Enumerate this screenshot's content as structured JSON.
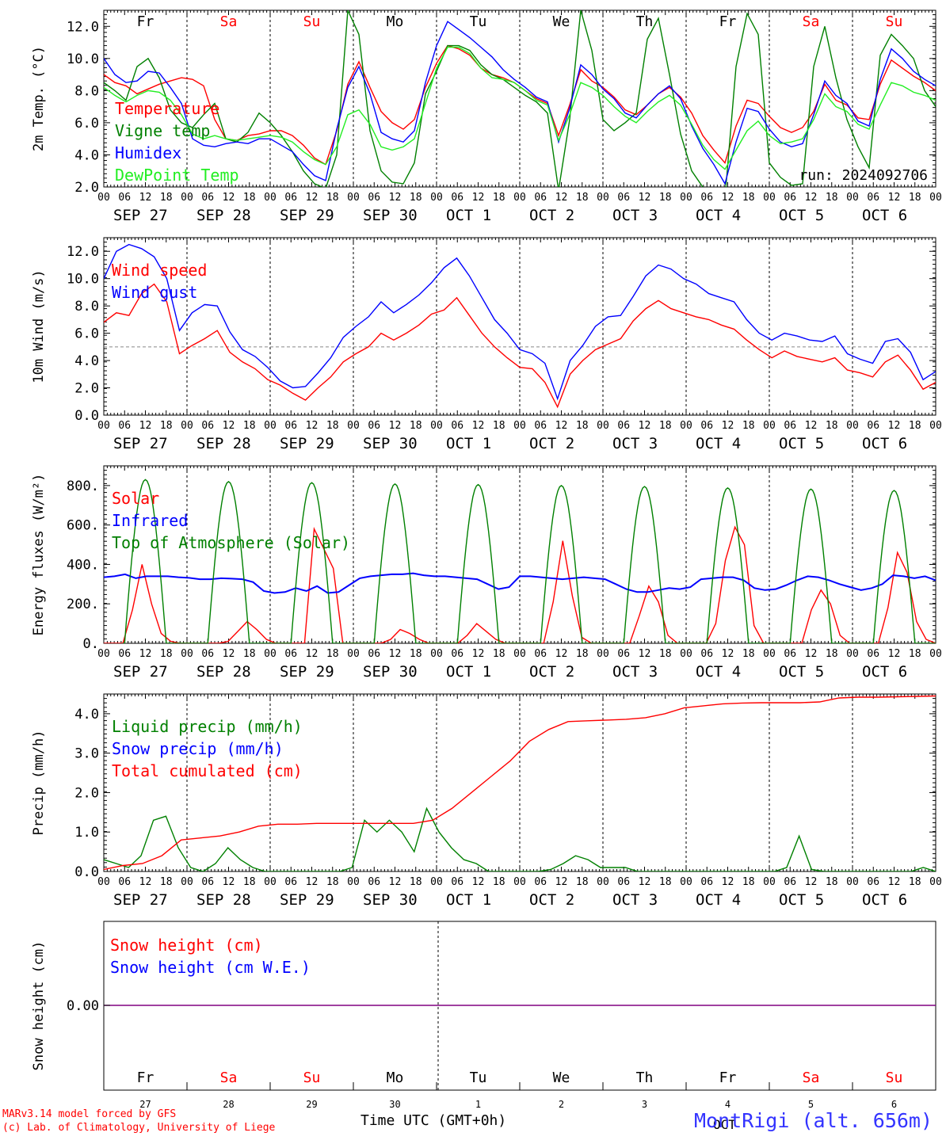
{
  "footer": {
    "model_credit": "MARv3.14 model forced by GFS",
    "lab_credit": "(c) Lab. of Climatology, University of Liege",
    "time_label": "Time UTC (GMT+0h)",
    "station": "MontRigi (alt. 656m)",
    "month_label": "OCT"
  },
  "colors": {
    "red": "#ff0000",
    "green": "#008000",
    "blue": "#0000ff",
    "light_green": "#22ee22",
    "dark_red": "#cc0000"
  },
  "days": {
    "abbr": [
      "Fr",
      "Sa",
      "Su",
      "Mo",
      "Tu",
      "We",
      "Th",
      "Fr",
      "Sa",
      "Su"
    ],
    "weekend": [
      false,
      true,
      true,
      false,
      false,
      false,
      false,
      false,
      true,
      true
    ],
    "dates": [
      "SEP 27",
      "SEP 28",
      "SEP 29",
      "SEP 30",
      "OCT  1",
      "OCT  2",
      "OCT  3",
      "OCT  4",
      "OCT  5",
      "OCT  6"
    ],
    "numbers": [
      "27",
      "28",
      "29",
      "30",
      "1",
      "2",
      "3",
      "4",
      "5",
      "6"
    ],
    "hour_ticks": [
      "00",
      "06",
      "12",
      "18"
    ],
    "end_tick": "00"
  },
  "chart_data": [
    {
      "type": "line",
      "ylabel": "2m Temp. (°C)",
      "ylim": [
        2,
        13
      ],
      "yticks": [
        "2.0",
        "4.0",
        "6.0",
        "8.0",
        "10.0",
        "12.0"
      ],
      "run_label": "run: 2024092706",
      "series": [
        {
          "name": "Temperature",
          "color": "#ff0000",
          "values": [
            9.0,
            8.5,
            8.3,
            7.8,
            8.1,
            8.4,
            8.6,
            8.8,
            8.7,
            8.3,
            6.2,
            5.0,
            4.9,
            5.2,
            5.3,
            5.5,
            5.5,
            5.2,
            4.6,
            3.8,
            3.4,
            5.5,
            8.4,
            9.8,
            8.2,
            6.7,
            6.0,
            5.6,
            6.2,
            8.2,
            9.7,
            10.8,
            10.6,
            10.2,
            9.4,
            9.0,
            8.8,
            8.5,
            8.0,
            7.5,
            7.2,
            5.2,
            7.1,
            9.3,
            8.6,
            8.2,
            7.6,
            6.8,
            6.5,
            7.1,
            7.8,
            8.2,
            7.6,
            6.6,
            5.2,
            4.3,
            3.5,
            5.8,
            7.4,
            7.2,
            6.4,
            5.7,
            5.4,
            5.7,
            6.7,
            8.4,
            7.4,
            7.1,
            6.3,
            6.2,
            8.4,
            9.9,
            9.4,
            8.9,
            8.5,
            8.0
          ]
        },
        {
          "name": "Vigne temp",
          "color": "#008000",
          "values": [
            8.5,
            8.0,
            7.4,
            9.5,
            10.0,
            8.8,
            6.8,
            6.0,
            5.7,
            6.5,
            7.2,
            5.0,
            4.8,
            5.4,
            6.6,
            6.0,
            5.2,
            4.2,
            3.0,
            2.2,
            1.9,
            4.0,
            13.0,
            11.5,
            5.5,
            3.0,
            2.3,
            2.2,
            3.5,
            7.8,
            9.2,
            10.8,
            10.8,
            10.5,
            9.6,
            9.0,
            8.7,
            8.2,
            7.7,
            7.3,
            6.6,
            1.8,
            6.2,
            13.0,
            10.5,
            6.2,
            5.5,
            6.0,
            6.6,
            11.2,
            12.5,
            9.0,
            5.3,
            3.0,
            2.0,
            1.6,
            1.3,
            9.5,
            12.8,
            11.5,
            3.5,
            2.6,
            2.1,
            2.2,
            9.5,
            12.0,
            8.8,
            6.2,
            4.5,
            3.2,
            10.2,
            11.5,
            10.8,
            10.0,
            8.0,
            7.0
          ]
        },
        {
          "name": "Humidex",
          "color": "#0000ff",
          "values": [
            10.0,
            9.0,
            8.5,
            8.6,
            9.2,
            9.1,
            8.2,
            7.2,
            5.0,
            4.6,
            4.5,
            4.7,
            4.8,
            4.7,
            5.0,
            5.0,
            4.6,
            4.2,
            3.4,
            2.7,
            2.4,
            5.6,
            8.2,
            9.5,
            7.8,
            5.4,
            5.0,
            4.8,
            5.5,
            8.5,
            10.8,
            12.3,
            11.8,
            11.3,
            10.7,
            10.1,
            9.3,
            8.7,
            8.2,
            7.6,
            7.3,
            4.8,
            6.9,
            9.6,
            9.0,
            8.1,
            7.5,
            6.6,
            6.3,
            7.1,
            7.8,
            8.3,
            7.5,
            5.8,
            4.4,
            3.4,
            2.2,
            4.8,
            6.9,
            6.7,
            5.6,
            4.8,
            4.5,
            4.7,
            6.5,
            8.6,
            7.7,
            7.2,
            6.1,
            5.8,
            8.7,
            10.6,
            10.0,
            9.2,
            8.7,
            8.3
          ]
        },
        {
          "name": "DewPoint Temp",
          "color": "#22ee22",
          "values": [
            8.2,
            7.7,
            7.3,
            7.7,
            8.0,
            7.9,
            7.4,
            6.5,
            5.3,
            5.0,
            5.2,
            5.0,
            4.9,
            5.0,
            5.1,
            5.2,
            5.1,
            4.8,
            4.2,
            3.7,
            3.4,
            4.5,
            6.5,
            6.8,
            5.9,
            4.5,
            4.3,
            4.5,
            5.0,
            7.2,
            9.4,
            10.7,
            10.7,
            10.3,
            9.4,
            8.8,
            8.7,
            8.5,
            8.0,
            7.4,
            7.1,
            4.9,
            6.5,
            8.5,
            8.2,
            7.7,
            7.0,
            6.4,
            6.0,
            6.7,
            7.3,
            7.7,
            7.1,
            5.9,
            4.6,
            3.7,
            3.1,
            4.3,
            5.5,
            6.1,
            5.2,
            4.7,
            4.8,
            5.0,
            6.2,
            7.8,
            7.0,
            6.7,
            5.9,
            5.6,
            7.1,
            8.5,
            8.3,
            7.9,
            7.7,
            7.4
          ]
        }
      ]
    },
    {
      "type": "line",
      "ylabel": "10m Wind (m/s)",
      "ylim": [
        0,
        13
      ],
      "yticks": [
        "0.0",
        "2.0",
        "4.0",
        "6.0",
        "8.0",
        "10.0",
        "12.0"
      ],
      "reference_line": 5.0,
      "series": [
        {
          "name": "Wind speed",
          "color": "#ff0000",
          "values": [
            6.8,
            7.5,
            7.3,
            8.9,
            9.6,
            8.3,
            4.5,
            5.1,
            5.6,
            6.2,
            4.6,
            3.9,
            3.4,
            2.6,
            2.2,
            1.6,
            1.1,
            2.0,
            2.8,
            3.9,
            4.5,
            5.0,
            6.0,
            5.5,
            6.0,
            6.6,
            7.4,
            7.7,
            8.6,
            7.3,
            6.0,
            5.0,
            4.2,
            3.5,
            3.4,
            2.4,
            0.6,
            3.0,
            4.0,
            4.8,
            5.2,
            5.6,
            6.9,
            7.8,
            8.4,
            7.8,
            7.5,
            7.2,
            7.0,
            6.6,
            6.3,
            5.5,
            4.8,
            4.2,
            4.7,
            4.3,
            4.1,
            3.9,
            4.2,
            3.3,
            3.1,
            2.8,
            3.9,
            4.4,
            3.3,
            1.9,
            2.4
          ]
        },
        {
          "name": "Wind gust",
          "color": "#0000ff",
          "values": [
            10.0,
            12.0,
            12.5,
            12.2,
            11.6,
            10.0,
            6.2,
            7.5,
            8.1,
            8.0,
            6.1,
            4.8,
            4.3,
            3.5,
            2.5,
            2.0,
            2.1,
            3.1,
            4.2,
            5.7,
            6.5,
            7.2,
            8.3,
            7.5,
            8.1,
            8.8,
            9.7,
            10.8,
            11.5,
            10.2,
            8.6,
            7.0,
            6.0,
            4.8,
            4.5,
            3.8,
            1.2,
            4.0,
            5.1,
            6.5,
            7.2,
            7.3,
            8.7,
            10.2,
            11.0,
            10.7,
            10.0,
            9.6,
            8.9,
            8.6,
            8.3,
            7.0,
            6.0,
            5.5,
            6.0,
            5.8,
            5.5,
            5.4,
            5.8,
            4.5,
            4.1,
            3.8,
            5.4,
            5.6,
            4.6,
            2.6,
            3.2
          ]
        }
      ]
    },
    {
      "type": "line",
      "ylabel": "Energy fluxes (W/m²)",
      "ylim": [
        0,
        900
      ],
      "yticks": [
        "0.",
        "200.",
        "400.",
        "600.",
        "800."
      ],
      "series": [
        {
          "name": "Solar",
          "color": "#ff0000",
          "values": [
            0,
            0,
            0,
            170,
            400,
            200,
            50,
            10,
            0,
            0,
            0,
            0,
            0,
            10,
            60,
            110,
            70,
            20,
            0,
            0,
            0,
            0,
            580,
            480,
            380,
            0,
            0,
            0,
            0,
            0,
            20,
            70,
            50,
            20,
            0,
            0,
            0,
            0,
            40,
            100,
            60,
            20,
            0,
            0,
            0,
            0,
            0,
            210,
            520,
            240,
            30,
            0,
            0,
            0,
            0,
            0,
            140,
            290,
            210,
            40,
            0,
            0,
            0,
            0,
            100,
            420,
            590,
            500,
            90,
            0,
            0,
            0,
            0,
            0,
            170,
            270,
            200,
            40,
            0,
            0,
            0,
            0,
            180,
            460,
            360,
            110,
            20,
            0
          ]
        },
        {
          "name": "Infrared",
          "color": "#0000ff",
          "values": [
            335,
            340,
            350,
            330,
            340,
            340,
            340,
            335,
            332,
            325,
            325,
            330,
            328,
            325,
            310,
            265,
            255,
            260,
            280,
            265,
            290,
            255,
            260,
            295,
            330,
            340,
            345,
            350,
            350,
            355,
            345,
            340,
            340,
            335,
            330,
            325,
            300,
            275,
            285,
            340,
            340,
            335,
            330,
            325,
            330,
            335,
            330,
            325,
            300,
            275,
            260,
            260,
            270,
            280,
            275,
            285,
            325,
            330,
            335,
            335,
            320,
            280,
            270,
            275,
            295,
            320,
            340,
            335,
            320,
            300,
            285,
            270,
            280,
            300,
            345,
            340,
            330,
            340,
            320
          ]
        },
        {
          "name": "Top of Atmosphere (Solar)",
          "color": "#008000",
          "peaks": [
            830,
            820,
            815,
            808,
            805,
            800,
            795,
            788,
            782,
            775
          ]
        }
      ]
    },
    {
      "type": "line",
      "ylabel": "Precip (mm/h)",
      "ylim": [
        0,
        4.5
      ],
      "yticks": [
        "0.0",
        "1.0",
        "2.0",
        "3.0",
        "4.0"
      ],
      "series": [
        {
          "name": "Liquid precip (mm/h)",
          "color": "#008000",
          "values": [
            0.3,
            0.2,
            0.1,
            0.4,
            1.3,
            1.4,
            0.6,
            0.1,
            0.0,
            0.2,
            0.6,
            0.3,
            0.1,
            0.0,
            0.0,
            0.0,
            0.0,
            0.0,
            0.0,
            0.0,
            0.1,
            1.3,
            1.0,
            1.3,
            1.0,
            0.5,
            1.6,
            1.0,
            0.6,
            0.3,
            0.2,
            0.0,
            0.0,
            0.0,
            0.0,
            0.0,
            0.05,
            0.2,
            0.4,
            0.3,
            0.1,
            0.1,
            0.1,
            0.0,
            0.0,
            0.0,
            0.0,
            0.0,
            0.0,
            0.0,
            0.0,
            0.0,
            0.0,
            0.0,
            0.0,
            0.1,
            0.9,
            0.05,
            0.0,
            0.0,
            0.0,
            0.0,
            0.0,
            0.0,
            0.0,
            0.0,
            0.1,
            0.0
          ]
        },
        {
          "name": "Snow precip (mm/h)",
          "color": "#0000ff",
          "values": []
        },
        {
          "name": "Total cumulated (cm)",
          "color": "#ff0000",
          "values": [
            0.05,
            0.15,
            0.2,
            0.4,
            0.8,
            0.85,
            0.9,
            1.0,
            1.15,
            1.2,
            1.2,
            1.22,
            1.22,
            1.22,
            1.22,
            1.22,
            1.22,
            1.3,
            1.6,
            2.0,
            2.4,
            2.8,
            3.3,
            3.6,
            3.8,
            3.82,
            3.84,
            3.86,
            3.9,
            4.0,
            4.15,
            4.2,
            4.25,
            4.27,
            4.28,
            4.28,
            4.28,
            4.3,
            4.4,
            4.42,
            4.42,
            4.43,
            4.44,
            4.45
          ]
        }
      ]
    },
    {
      "type": "line",
      "ylabel": "Snow height (cm)",
      "yticks": [
        "0.00"
      ],
      "series": [
        {
          "name": "Snow height (cm)",
          "color": "#ff0000",
          "values": [
            0,
            0
          ]
        },
        {
          "name": "Snow height (cm W.E.)",
          "color": "#0000ff",
          "values": [
            0,
            0
          ]
        }
      ]
    }
  ]
}
